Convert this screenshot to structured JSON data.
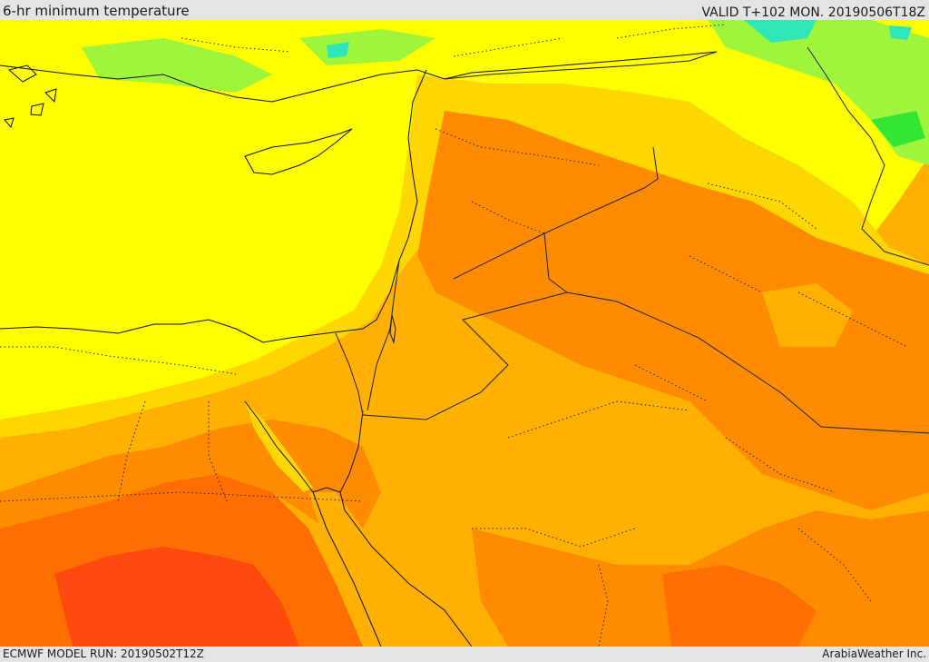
{
  "header": {
    "title": "6-hr minimum temperature",
    "valid": "VALID T+102 MON. 20190506T18Z"
  },
  "footer": {
    "model_run": "ECMWF MODEL RUN: 20190502T12Z",
    "credit": "ArabiaWeather Inc."
  },
  "map": {
    "field": "6-hr minimum temperature",
    "colors": {
      "green": "#33e633",
      "light_green": "#9ff53c",
      "cyan": "#2fe6b8",
      "yellow": "#ffff00",
      "gold": "#ffd700",
      "amber": "#ffb000",
      "orange": "#ff8c00",
      "dark_orange": "#ff6e00",
      "red_orange": "#ff4a0f",
      "coastline": "#111111",
      "border": "#222222"
    }
  }
}
